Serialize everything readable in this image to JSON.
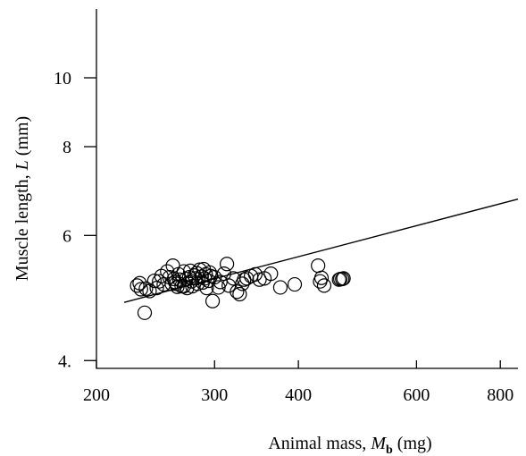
{
  "chart_data": {
    "type": "scatter",
    "title": "",
    "xlabel": {
      "pre": "Animal mass, ",
      "sym": "M",
      "sub": "b",
      "post": " (mg)"
    },
    "ylabel": {
      "pre": "Muscle length, ",
      "sym": "L",
      "post": " (mm)"
    },
    "x_scale": "log",
    "y_scale": "log",
    "xlim": [
      200,
      850
    ],
    "ylim": [
      3.9,
      12.5
    ],
    "x_ticks": [
      {
        "value": 200,
        "label": "200"
      },
      {
        "value": 300,
        "label": "300"
      },
      {
        "value": 400,
        "label": "400"
      },
      {
        "value": 600,
        "label": "600"
      },
      {
        "value": 800,
        "label": "800"
      }
    ],
    "y_ticks": [
      {
        "value": 4,
        "label": "4."
      },
      {
        "value": 6,
        "label": "6"
      },
      {
        "value": 8,
        "label": "8"
      },
      {
        "value": 10,
        "label": "10"
      }
    ],
    "grid": false,
    "series": [
      {
        "marker": "open-circle",
        "x": [
          230,
          232,
          233,
          236,
          237,
          240,
          244,
          246,
          248,
          250,
          252,
          255,
          257,
          259,
          260,
          261,
          262,
          263,
          264,
          265,
          266,
          268,
          270,
          270,
          272,
          273,
          275,
          276,
          277,
          278,
          280,
          281,
          282,
          283,
          285,
          287,
          288,
          289,
          290,
          291,
          292,
          294,
          295,
          296,
          298,
          300,
          304,
          306,
          310,
          313,
          315,
          320,
          324,
          327,
          330,
          332,
          335,
          340,
          345,
          350,
          356,
          364,
          376,
          395,
          428,
          431,
          433,
          437,
          460,
          462,
          465,
          467
        ],
        "y": [
          5.1,
          5.14,
          5.04,
          4.67,
          5.05,
          5.01,
          5.18,
          5.06,
          5.17,
          5.26,
          5.12,
          5.34,
          5.24,
          5.13,
          5.44,
          5.21,
          5.16,
          5.13,
          5.08,
          5.29,
          5.2,
          5.09,
          5.09,
          5.34,
          5.21,
          5.06,
          5.24,
          5.35,
          5.17,
          5.09,
          5.27,
          5.22,
          5.31,
          5.13,
          5.37,
          5.25,
          5.15,
          5.38,
          5.22,
          5.29,
          5.06,
          5.18,
          5.32,
          5.26,
          4.85,
          5.24,
          5.07,
          5.16,
          5.3,
          5.47,
          5.1,
          5.22,
          5.0,
          4.96,
          5.13,
          5.2,
          5.22,
          5.26,
          5.29,
          5.2,
          5.22,
          5.3,
          5.07,
          5.12,
          5.44,
          5.17,
          5.23,
          5.1,
          5.2,
          5.21,
          5.21,
          5.22
        ]
      }
    ],
    "fit_line": {
      "x": [
        220,
        850
      ],
      "y": [
        4.83,
        6.75
      ]
    },
    "annotations": []
  }
}
